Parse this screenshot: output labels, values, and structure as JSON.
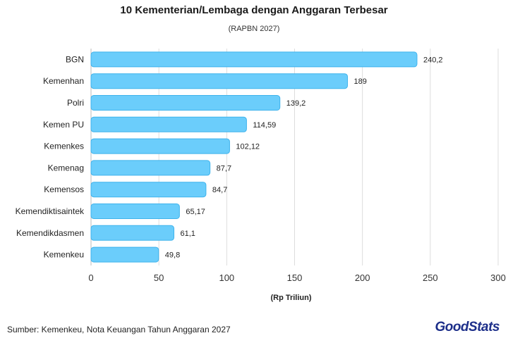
{
  "chart_data": {
    "type": "bar",
    "orientation": "horizontal",
    "title": "10 Kementerian/Lembaga dengan Anggaran Terbesar",
    "subtitle": "(RAPBN 2027)",
    "xlabel": "(Rp Triliun)",
    "ylabel": "",
    "xlim": [
      0,
      300
    ],
    "xticks": [
      0,
      50,
      100,
      150,
      200,
      250,
      300
    ],
    "grid": true,
    "categories": [
      "BGN",
      "Kemenhan",
      "Polri",
      "Kemen PU",
      "Kemenkes",
      "Kemenag",
      "Kemensos",
      "Kemendiktisaintek",
      "Kemendikdasmen",
      "Kemenkeu"
    ],
    "values": [
      240.2,
      189,
      139.2,
      114.59,
      102.12,
      87.7,
      84.7,
      65.17,
      61.1,
      49.8
    ],
    "value_labels": [
      "240,2",
      "189",
      "139,2",
      "114,59",
      "102,12",
      "87,7",
      "84,7",
      "65,17",
      "61,1",
      "49,8"
    ],
    "bar_color": "#6bcdfb",
    "bar_border_color": "#3fb3ec"
  },
  "source": "Sumber: Kemenkeu, Nota Keuangan Tahun Anggaran 2027",
  "logo": "GoodStats"
}
